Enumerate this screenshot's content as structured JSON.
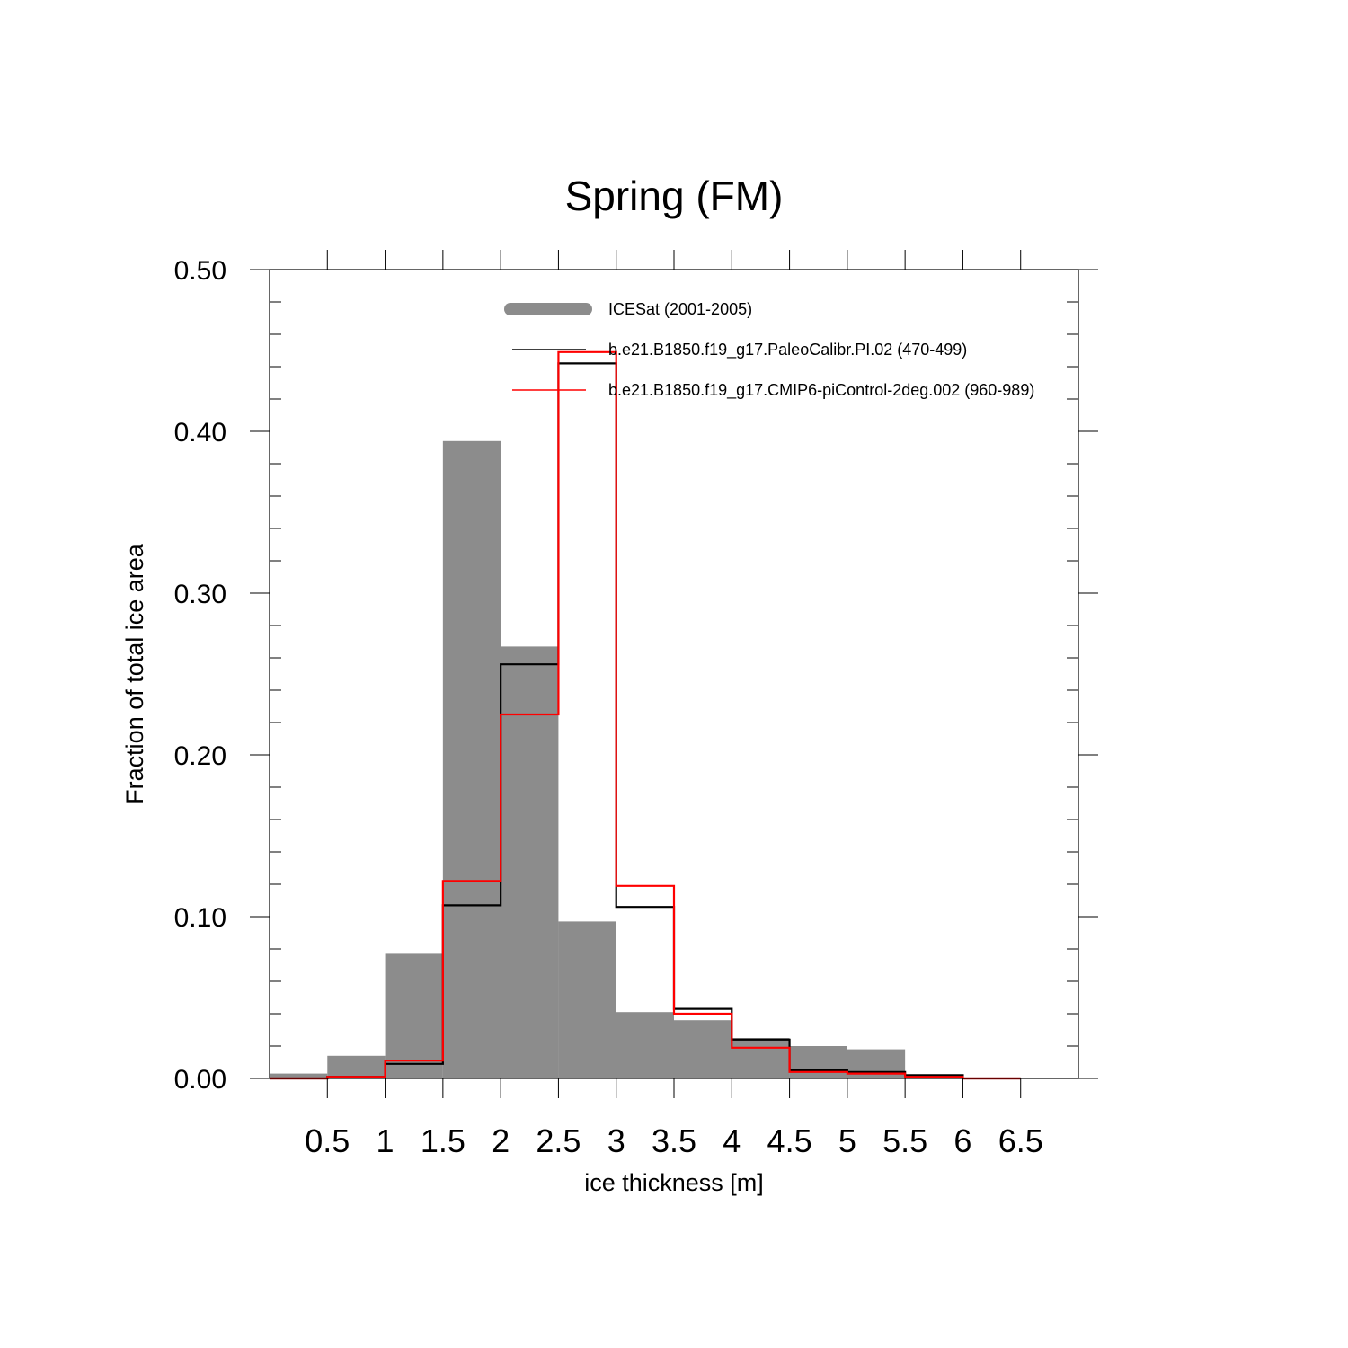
{
  "chart_data": {
    "type": "bar",
    "title": "Spring (FM)",
    "xlabel": "ice thickness [m]",
    "ylabel": "Fraction of total ice area",
    "xlim": [
      0,
      7
    ],
    "ylim": [
      0,
      0.5
    ],
    "x_tick_labels": [
      "0.5",
      "1",
      "1.5",
      "2",
      "2.5",
      "3",
      "3.5",
      "4",
      "4.5",
      "5",
      "5.5",
      "6",
      "6.5"
    ],
    "y_tick_labels": [
      "0.00",
      "0.10",
      "0.20",
      "0.30",
      "0.40",
      "0.50"
    ],
    "bin_edges": [
      0,
      0.5,
      1,
      1.5,
      2,
      2.5,
      3,
      3.5,
      4,
      4.5,
      5,
      5.5,
      6,
      6.5
    ],
    "legend_position": "top-right",
    "series": [
      {
        "name": "ICESat (2001-2005)",
        "style": "filled-bars",
        "color": "#8c8c8c",
        "values": [
          0.003,
          0.014,
          0.077,
          0.394,
          0.267,
          0.097,
          0.041,
          0.036,
          0.025,
          0.02,
          0.018,
          0.0,
          0.0
        ]
      },
      {
        "name": "b.e21.B1850.f19_g17.PaleoCalibr.PI.02 (470-499)",
        "style": "step-line",
        "color": "#000000",
        "values": [
          0.0,
          0.001,
          0.009,
          0.107,
          0.256,
          0.442,
          0.106,
          0.043,
          0.024,
          0.005,
          0.004,
          0.002,
          0.0
        ]
      },
      {
        "name": "b.e21.B1850.f19_g17.CMIP6-piControl-2deg.002 (960-989)",
        "style": "step-line",
        "color": "#ff0000",
        "values": [
          0.0,
          0.001,
          0.011,
          0.122,
          0.225,
          0.449,
          0.119,
          0.04,
          0.019,
          0.004,
          0.003,
          0.001,
          0.0
        ]
      }
    ]
  }
}
